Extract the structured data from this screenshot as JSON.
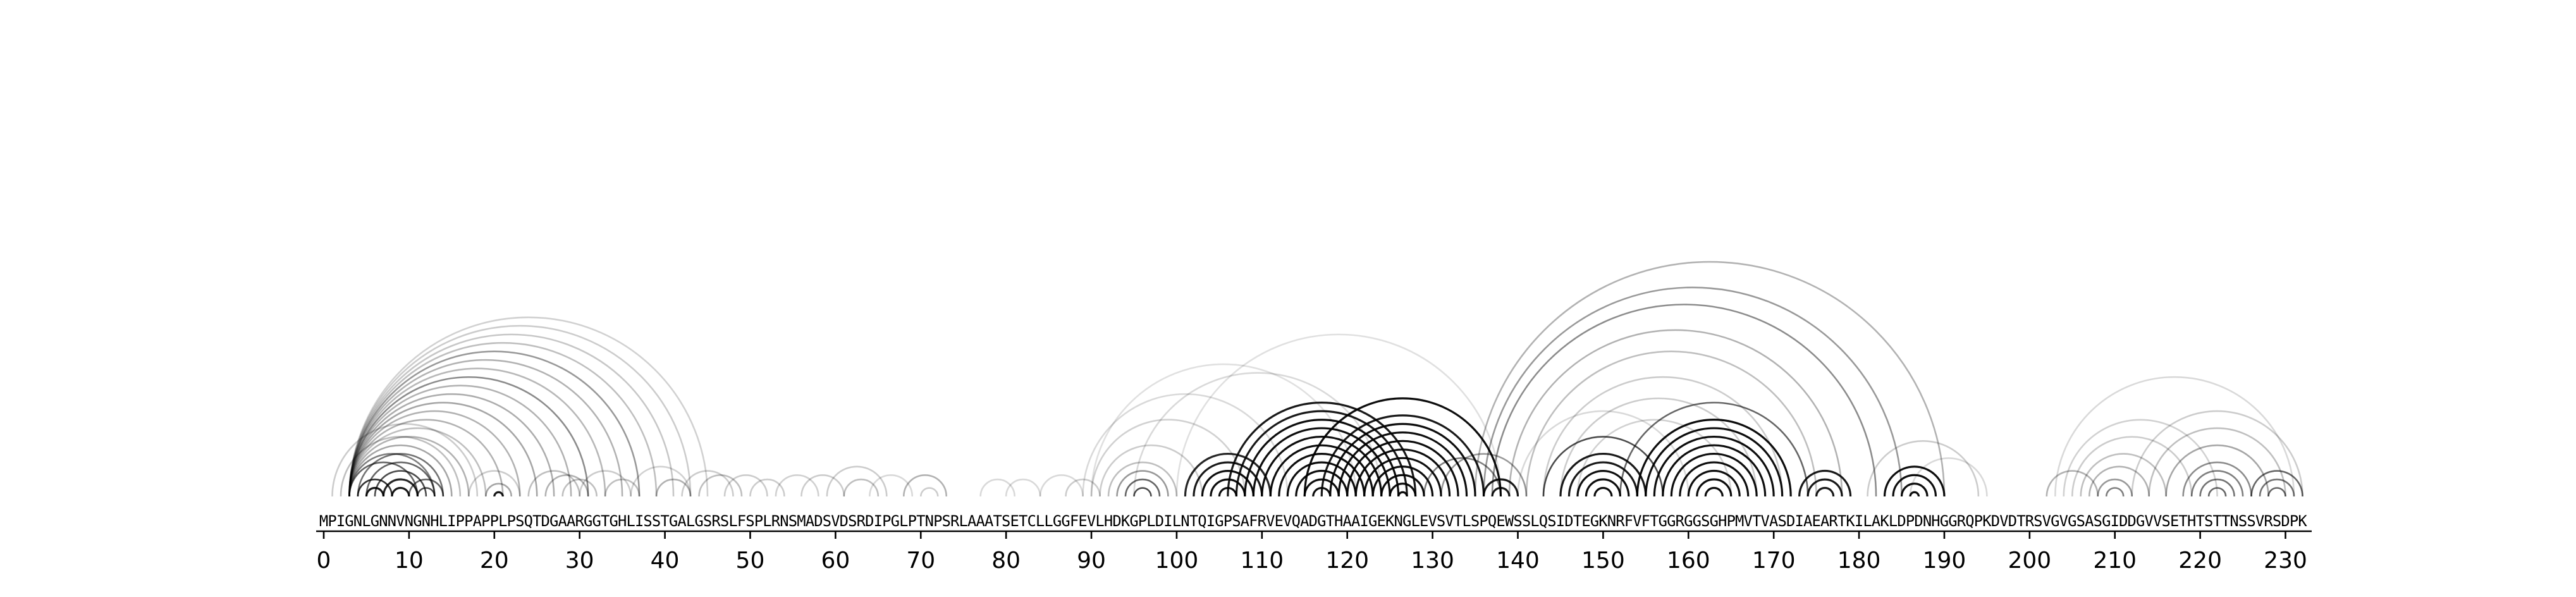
{
  "chart_data": {
    "type": "arc",
    "title": "",
    "xlabel": "",
    "ylabel": "",
    "xlim": [
      0,
      233
    ],
    "xticks": [
      0,
      10,
      20,
      30,
      40,
      50,
      60,
      70,
      80,
      90,
      100,
      110,
      120,
      130,
      140,
      150,
      160,
      170,
      180,
      190,
      200,
      210,
      220,
      230
    ],
    "xtick_labels": [
      "0",
      "10",
      "20",
      "30",
      "40",
      "50",
      "60",
      "70",
      "80",
      "90",
      "100",
      "110",
      "120",
      "130",
      "140",
      "150",
      "160",
      "170",
      "180",
      "190",
      "200",
      "210",
      "220",
      "230"
    ],
    "sequence": "MPIGNLGNNVNGNHLIPPAPPLPSQTDGAARGGTGHLISSTGALGSRSLFSPLRNSMADSVDSRDIPGLPTNPSRLAAATSETCLLGGFEVLHDKGPLDILNTQIGPSAFRVEVQADGTHAAIGEKNGLEVSVTLSPQEWSSLQSIDTEGKNRFVFTGGRGGSGHPMVTVASDIAEARTKILAKLDPDNHGGRQPKDVDTRSVGVGSASGIDDGVVSETHTSTTNSSVRSDPK",
    "arcs": [
      {
        "i": 3,
        "j": 45,
        "w": 0.18
      },
      {
        "i": 3,
        "j": 43,
        "w": 0.2
      },
      {
        "i": 3,
        "j": 41,
        "w": 0.22
      },
      {
        "i": 3,
        "j": 39,
        "w": 0.25
      },
      {
        "i": 3,
        "j": 37,
        "w": 0.4
      },
      {
        "i": 3,
        "j": 35,
        "w": 0.3
      },
      {
        "i": 3,
        "j": 33,
        "w": 0.28
      },
      {
        "i": 3,
        "j": 31,
        "w": 0.45
      },
      {
        "i": 3,
        "j": 29,
        "w": 0.3
      },
      {
        "i": 3,
        "j": 27,
        "w": 0.32
      },
      {
        "i": 3,
        "j": 25,
        "w": 0.35
      },
      {
        "i": 3,
        "j": 23,
        "w": 0.3
      },
      {
        "i": 3,
        "j": 21,
        "w": 0.3
      },
      {
        "i": 3,
        "j": 19,
        "w": 0.25
      },
      {
        "i": 3,
        "j": 17,
        "w": 0.3
      },
      {
        "i": 3,
        "j": 15,
        "w": 0.35
      },
      {
        "i": 3,
        "j": 13,
        "w": 0.5
      },
      {
        "i": 3,
        "j": 11,
        "w": 0.6
      },
      {
        "i": 4,
        "j": 14,
        "w": 0.55
      },
      {
        "i": 5,
        "j": 13,
        "w": 0.6
      },
      {
        "i": 6,
        "j": 12,
        "w": 0.7
      },
      {
        "i": 7,
        "j": 11,
        "w": 0.85
      },
      {
        "i": 8,
        "j": 10,
        "w": 0.9
      },
      {
        "i": 4,
        "j": 8,
        "w": 0.8
      },
      {
        "i": 5,
        "j": 7,
        "w": 0.9
      },
      {
        "i": 10,
        "j": 14,
        "w": 0.6
      },
      {
        "i": 11,
        "j": 13,
        "w": 0.7
      },
      {
        "i": 2,
        "j": 16,
        "w": 0.25
      },
      {
        "i": 1,
        "j": 18,
        "w": 0.2
      },
      {
        "i": 19,
        "j": 22,
        "w": 0.35
      },
      {
        "i": 20,
        "j": 21,
        "w": 0.9
      },
      {
        "i": 17,
        "j": 23,
        "w": 0.2
      },
      {
        "i": 24,
        "j": 30,
        "w": 0.25
      },
      {
        "i": 26,
        "j": 31,
        "w": 0.3
      },
      {
        "i": 28,
        "j": 32,
        "w": 0.25
      },
      {
        "i": 30,
        "j": 36,
        "w": 0.2
      },
      {
        "i": 33,
        "j": 37,
        "w": 0.25
      },
      {
        "i": 36,
        "j": 43,
        "w": 0.18
      },
      {
        "i": 39,
        "j": 43,
        "w": 0.3
      },
      {
        "i": 42,
        "j": 48,
        "w": 0.2
      },
      {
        "i": 44,
        "j": 49,
        "w": 0.25
      },
      {
        "i": 47,
        "j": 52,
        "w": 0.2
      },
      {
        "i": 50,
        "j": 54,
        "w": 0.2
      },
      {
        "i": 53,
        "j": 58,
        "w": 0.18
      },
      {
        "i": 56,
        "j": 61,
        "w": 0.2
      },
      {
        "i": 59,
        "j": 66,
        "w": 0.2
      },
      {
        "i": 61,
        "j": 65,
        "w": 0.25
      },
      {
        "i": 64,
        "j": 69,
        "w": 0.15
      },
      {
        "i": 68,
        "j": 73,
        "w": 0.3
      },
      {
        "i": 70,
        "j": 72,
        "w": 0.2
      },
      {
        "i": 77,
        "j": 81,
        "w": 0.15
      },
      {
        "i": 80,
        "j": 84,
        "w": 0.15
      },
      {
        "i": 84,
        "j": 89,
        "w": 0.15
      },
      {
        "i": 87,
        "j": 91,
        "w": 0.2
      },
      {
        "i": 89,
        "j": 113,
        "w": 0.15
      },
      {
        "i": 90,
        "j": 108,
        "w": 0.18
      },
      {
        "i": 91,
        "j": 103,
        "w": 0.2
      },
      {
        "i": 92,
        "j": 100,
        "w": 0.25
      },
      {
        "i": 93,
        "j": 99,
        "w": 0.4
      },
      {
        "i": 94,
        "j": 98,
        "w": 0.6
      },
      {
        "i": 95,
        "j": 97,
        "w": 0.7
      },
      {
        "i": 101,
        "j": 111,
        "w": 0.85
      },
      {
        "i": 102,
        "j": 110,
        "w": 0.9
      },
      {
        "i": 103,
        "j": 109,
        "w": 0.95
      },
      {
        "i": 104,
        "j": 108,
        "w": 0.95
      },
      {
        "i": 105,
        "j": 107,
        "w": 0.95
      },
      {
        "i": 106,
        "j": 128,
        "w": 0.9
      },
      {
        "i": 107,
        "j": 127,
        "w": 0.9
      },
      {
        "i": 108,
        "j": 126,
        "w": 0.95
      },
      {
        "i": 109,
        "j": 125,
        "w": 0.95
      },
      {
        "i": 110,
        "j": 124,
        "w": 0.95
      },
      {
        "i": 111,
        "j": 123,
        "w": 0.95
      },
      {
        "i": 112,
        "j": 122,
        "w": 0.95
      },
      {
        "i": 113,
        "j": 121,
        "w": 0.95
      },
      {
        "i": 114,
        "j": 120,
        "w": 0.95
      },
      {
        "i": 115,
        "j": 119,
        "w": 0.95
      },
      {
        "i": 116,
        "j": 118,
        "w": 0.95
      },
      {
        "i": 115,
        "j": 138,
        "w": 0.95
      },
      {
        "i": 117,
        "j": 136,
        "w": 0.9
      },
      {
        "i": 118,
        "j": 135,
        "w": 0.95
      },
      {
        "i": 119,
        "j": 134,
        "w": 0.95
      },
      {
        "i": 120,
        "j": 133,
        "w": 0.95
      },
      {
        "i": 121,
        "j": 132,
        "w": 0.95
      },
      {
        "i": 122,
        "j": 131,
        "w": 0.95
      },
      {
        "i": 123,
        "j": 130,
        "w": 0.95
      },
      {
        "i": 124,
        "j": 129,
        "w": 0.95
      },
      {
        "i": 125,
        "j": 128,
        "w": 0.95
      },
      {
        "i": 126,
        "j": 127,
        "w": 0.95
      },
      {
        "i": 129,
        "j": 138,
        "w": 0.5
      },
      {
        "i": 131,
        "j": 141,
        "w": 0.4
      },
      {
        "i": 136,
        "j": 140,
        "w": 0.9
      },
      {
        "i": 137,
        "j": 139,
        "w": 0.9
      },
      {
        "i": 95,
        "j": 124,
        "w": 0.15
      },
      {
        "i": 90,
        "j": 121,
        "w": 0.12
      },
      {
        "i": 100,
        "j": 138,
        "w": 0.12
      },
      {
        "i": 135,
        "j": 190,
        "w": 0.3
      },
      {
        "i": 136,
        "j": 185,
        "w": 0.4
      },
      {
        "i": 137,
        "j": 182,
        "w": 0.45
      },
      {
        "i": 139,
        "j": 178,
        "w": 0.3
      },
      {
        "i": 141,
        "j": 175,
        "w": 0.25
      },
      {
        "i": 143,
        "j": 171,
        "w": 0.2
      },
      {
        "i": 145,
        "j": 168,
        "w": 0.2
      },
      {
        "i": 147,
        "j": 165,
        "w": 0.18
      },
      {
        "i": 140,
        "j": 160,
        "w": 0.15
      },
      {
        "i": 145,
        "j": 155,
        "w": 0.9
      },
      {
        "i": 146,
        "j": 154,
        "w": 0.9
      },
      {
        "i": 147,
        "j": 153,
        "w": 0.95
      },
      {
        "i": 148,
        "j": 152,
        "w": 0.95
      },
      {
        "i": 149,
        "j": 151,
        "w": 0.95
      },
      {
        "i": 143,
        "j": 157,
        "w": 0.7
      },
      {
        "i": 154,
        "j": 172,
        "w": 0.95
      },
      {
        "i": 155,
        "j": 171,
        "w": 0.95
      },
      {
        "i": 156,
        "j": 170,
        "w": 0.95
      },
      {
        "i": 157,
        "j": 169,
        "w": 0.95
      },
      {
        "i": 158,
        "j": 168,
        "w": 0.95
      },
      {
        "i": 159,
        "j": 167,
        "w": 0.95
      },
      {
        "i": 160,
        "j": 166,
        "w": 0.95
      },
      {
        "i": 161,
        "j": 165,
        "w": 0.95
      },
      {
        "i": 162,
        "j": 164,
        "w": 0.95
      },
      {
        "i": 152,
        "j": 174,
        "w": 0.6
      },
      {
        "i": 173,
        "j": 179,
        "w": 0.9
      },
      {
        "i": 174,
        "j": 178,
        "w": 0.9
      },
      {
        "i": 175,
        "j": 177,
        "w": 0.9
      },
      {
        "i": 183,
        "j": 190,
        "w": 0.95
      },
      {
        "i": 184,
        "j": 189,
        "w": 0.95
      },
      {
        "i": 185,
        "j": 188,
        "w": 0.95
      },
      {
        "i": 186,
        "j": 187,
        "w": 0.95
      },
      {
        "i": 181,
        "j": 194,
        "w": 0.2
      },
      {
        "i": 186,
        "j": 195,
        "w": 0.15
      },
      {
        "i": 203,
        "j": 231,
        "w": 0.15
      },
      {
        "i": 204,
        "j": 222,
        "w": 0.18
      },
      {
        "i": 205,
        "j": 219,
        "w": 0.2
      },
      {
        "i": 206,
        "j": 216,
        "w": 0.25
      },
      {
        "i": 207,
        "j": 214,
        "w": 0.3
      },
      {
        "i": 208,
        "j": 212,
        "w": 0.4
      },
      {
        "i": 209,
        "j": 211,
        "w": 0.5
      },
      {
        "i": 212,
        "j": 232,
        "w": 0.2
      },
      {
        "i": 214,
        "j": 230,
        "w": 0.25
      },
      {
        "i": 216,
        "j": 228,
        "w": 0.35
      },
      {
        "i": 218,
        "j": 226,
        "w": 0.45
      },
      {
        "i": 219,
        "j": 225,
        "w": 0.5
      },
      {
        "i": 220,
        "j": 224,
        "w": 0.55
      },
      {
        "i": 221,
        "j": 223,
        "w": 0.6
      },
      {
        "i": 226,
        "j": 232,
        "w": 0.6
      },
      {
        "i": 227,
        "j": 231,
        "w": 0.55
      },
      {
        "i": 228,
        "j": 230,
        "w": 0.6
      },
      {
        "i": 202,
        "j": 208,
        "w": 0.3
      }
    ]
  }
}
